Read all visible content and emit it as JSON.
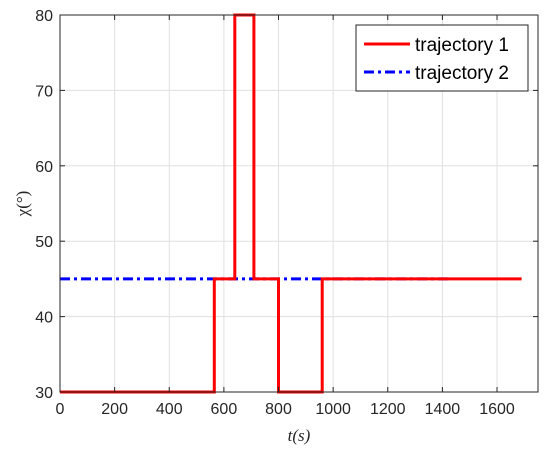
{
  "chart_data": {
    "type": "line",
    "xlabel": "t(s)",
    "ylabel": "χ(°)",
    "xlim": [
      0,
      1750
    ],
    "ylim": [
      30,
      80
    ],
    "xticks": [
      0,
      200,
      400,
      600,
      800,
      1000,
      1200,
      1400,
      1600
    ],
    "yticks": [
      30,
      40,
      50,
      60,
      70,
      80
    ],
    "grid": true,
    "legend_position": "top-right",
    "series": [
      {
        "name": "trajectory 1",
        "color": "#ff0000",
        "style": "solid",
        "x": [
          0,
          565,
          565,
          640,
          640,
          710,
          710,
          800,
          800,
          960,
          960,
          1690
        ],
        "y": [
          30,
          30,
          45,
          45,
          80,
          80,
          45,
          45,
          30,
          30,
          45,
          45
        ]
      },
      {
        "name": "trajectory 2",
        "color": "#0000ff",
        "style": "dashdot",
        "x": [
          0,
          1430
        ],
        "y": [
          45,
          45
        ]
      }
    ]
  }
}
